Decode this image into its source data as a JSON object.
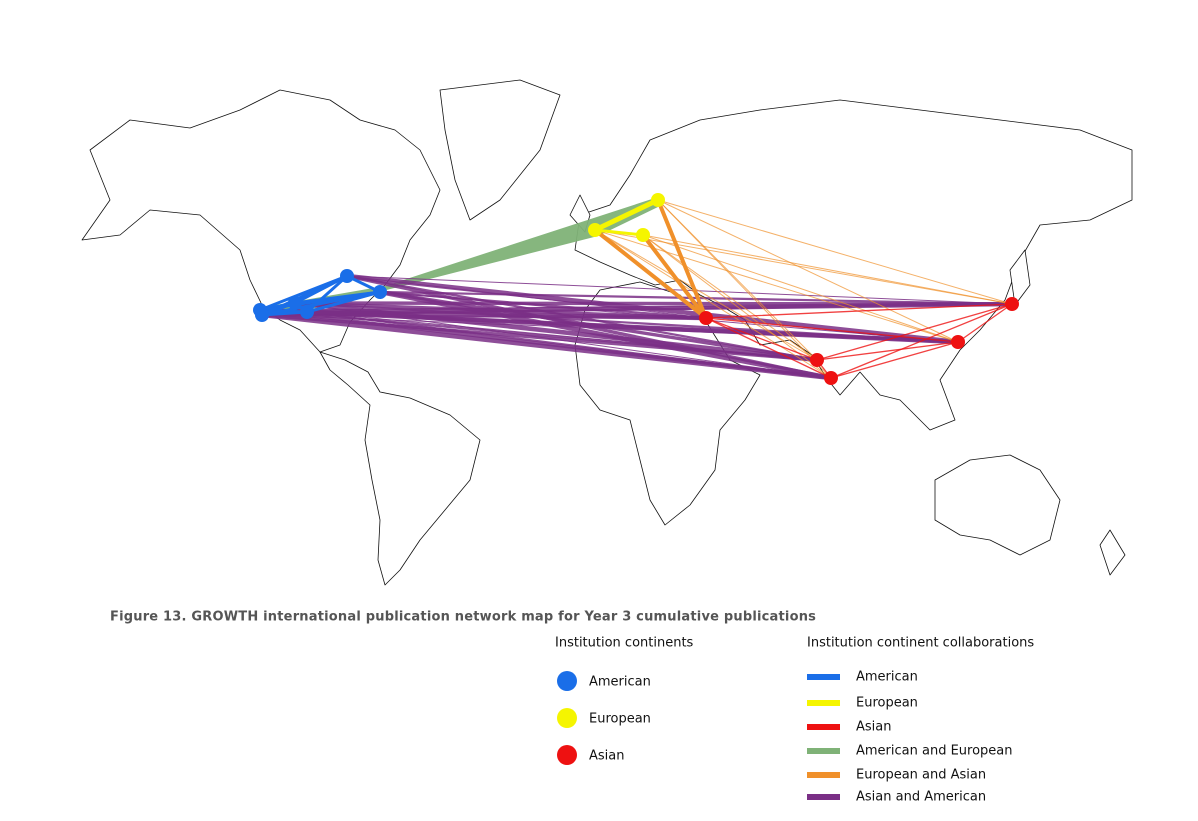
{
  "caption": "Figure 13. GROWTH international publication network map for Year 3 cumulative publications",
  "legend_nodes": {
    "title": "Institution continents",
    "items": [
      "American",
      "European",
      "Asian"
    ]
  },
  "legend_edges": {
    "title": "Institution continent collaborations",
    "items": [
      "American",
      "European",
      "Asian",
      "American and European",
      "European and Asian",
      "Asian and American"
    ]
  }
}
